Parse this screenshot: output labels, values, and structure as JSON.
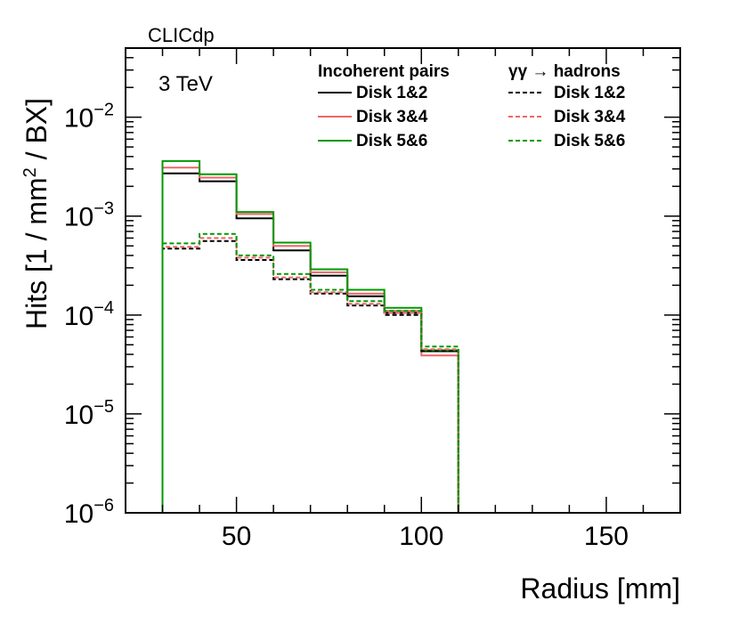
{
  "chart_data": {
    "type": "step-histogram",
    "experiment_label": "CLICdp",
    "energy_label": "3 TeV",
    "xlabel": "Radius [mm]",
    "ylabel": {
      "main": "Hits [1 / mm",
      "superscript": "2",
      "tail": " / BX]"
    },
    "xlim": [
      20,
      170
    ],
    "ylim": [
      1e-06,
      0.05
    ],
    "log_y": true,
    "grid": false,
    "x_ticks": [
      50,
      100,
      150
    ],
    "y_ticks": [
      {
        "value": 1e-06,
        "base": "10",
        "exp": "−6"
      },
      {
        "value": 1e-05,
        "base": "10",
        "exp": "−5"
      },
      {
        "value": 0.0001,
        "base": "10",
        "exp": "−4"
      },
      {
        "value": 0.001,
        "base": "10",
        "exp": "−3"
      },
      {
        "value": 0.01,
        "base": "10",
        "exp": "−2"
      }
    ],
    "legend": {
      "placement": "top-right",
      "headers": [
        "Incoherent pairs",
        "γγ  → hadrons"
      ]
    },
    "bin_edges": [
      20,
      30,
      40,
      50,
      60,
      70,
      80,
      90,
      100,
      110,
      120,
      130,
      140,
      150,
      160,
      170
    ],
    "series": [
      {
        "name": "Disk 1&2",
        "group": "Incoherent pairs",
        "color": "#000000",
        "dashed": false,
        "values": [
          1e-06,
          0.0027,
          0.00225,
          0.00095,
          0.00045,
          0.00025,
          0.000155,
          0.000105,
          4.3e-05,
          1e-06,
          1e-06,
          1e-06,
          1e-06,
          1e-06,
          1e-06
        ]
      },
      {
        "name": "Disk 3&4",
        "group": "Incoherent pairs",
        "color": "#ee6666",
        "dashed": false,
        "values": [
          1e-06,
          0.0031,
          0.00245,
          0.00105,
          0.0005,
          0.00027,
          0.000165,
          0.00011,
          3.9e-05,
          1e-06,
          1e-06,
          1e-06,
          1e-06,
          1e-06,
          1e-06
        ]
      },
      {
        "name": "Disk 5&6",
        "group": "Incoherent pairs",
        "color": "#009900",
        "dashed": false,
        "values": [
          1e-06,
          0.0036,
          0.00265,
          0.0011,
          0.00054,
          0.00029,
          0.00018,
          0.000118,
          4.4e-05,
          1e-06,
          1e-06,
          1e-06,
          1e-06,
          1e-06,
          1e-06
        ]
      },
      {
        "name": "Disk 1&2",
        "group": "γγ  → hadrons",
        "color": "#000000",
        "dashed": true,
        "values": [
          1e-06,
          0.00047,
          0.00056,
          0.00036,
          0.00023,
          0.000165,
          0.000125,
          0.0001,
          4.3e-05,
          1e-06,
          1e-06,
          1e-06,
          1e-06,
          1e-06,
          1e-06
        ]
      },
      {
        "name": "Disk 3&4",
        "group": "γγ  → hadrons",
        "color": "#ee6666",
        "dashed": true,
        "values": [
          1e-06,
          0.00049,
          0.0006,
          0.00038,
          0.00024,
          0.00017,
          0.00013,
          0.000105,
          4.5e-05,
          1e-06,
          1e-06,
          1e-06,
          1e-06,
          1e-06,
          1e-06
        ]
      },
      {
        "name": "Disk 5&6",
        "group": "γγ  → hadrons",
        "color": "#009900",
        "dashed": true,
        "values": [
          1e-06,
          0.00053,
          0.00066,
          0.0004,
          0.00026,
          0.00018,
          0.000138,
          0.00011,
          4.8e-05,
          1e-06,
          1e-06,
          1e-06,
          1e-06,
          1e-06,
          1e-06
        ]
      }
    ]
  }
}
